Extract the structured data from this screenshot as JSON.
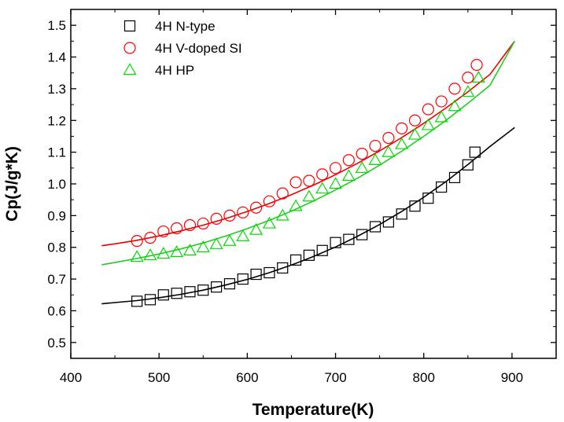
{
  "chart_data": {
    "type": "scatter",
    "title": "",
    "xlabel": "Temperature(K)",
    "ylabel": "Cp(J/g*K)",
    "xlim": [
      400,
      950
    ],
    "ylim": [
      0.45,
      1.55
    ],
    "xticks": [
      "400",
      "500",
      "600",
      "700",
      "800",
      "900"
    ],
    "yticks": [
      "0.5",
      "0.6",
      "0.7",
      "0.8",
      "0.9",
      "1.0",
      "1.1",
      "1.2",
      "1.3",
      "1.4",
      "1.5"
    ],
    "legend_position": "top-left",
    "grid": false,
    "series": [
      {
        "name": "4H N-type",
        "marker": "square",
        "color": "#000000",
        "x": [
          475,
          490,
          505,
          520,
          535,
          550,
          565,
          580,
          595,
          610,
          625,
          640,
          655,
          670,
          685,
          700,
          715,
          730,
          745,
          760,
          775,
          790,
          805,
          820,
          835,
          850,
          858
        ],
        "y": [
          0.63,
          0.635,
          0.65,
          0.655,
          0.66,
          0.665,
          0.675,
          0.685,
          0.7,
          0.715,
          0.72,
          0.735,
          0.76,
          0.775,
          0.79,
          0.815,
          0.825,
          0.84,
          0.865,
          0.88,
          0.905,
          0.93,
          0.955,
          0.99,
          1.02,
          1.06,
          1.1
        ],
        "fit_x": [
          435,
          450,
          475,
          500,
          525,
          550,
          575,
          600,
          625,
          650,
          675,
          700,
          725,
          750,
          775,
          800,
          825,
          850,
          875,
          903
        ],
        "fit_y": [
          0.622,
          0.626,
          0.632,
          0.641,
          0.652,
          0.665,
          0.681,
          0.699,
          0.72,
          0.744,
          0.771,
          0.801,
          0.835,
          0.872,
          0.913,
          0.958,
          1.007,
          1.061,
          1.118,
          1.178
        ]
      },
      {
        "name": "4H V-doped SI",
        "marker": "circle",
        "color": "#ff0000",
        "x": [
          475,
          490,
          505,
          520,
          535,
          550,
          565,
          580,
          595,
          610,
          625,
          640,
          655,
          670,
          685,
          700,
          715,
          730,
          745,
          760,
          775,
          790,
          805,
          820,
          835,
          850,
          860
        ],
        "y": [
          0.82,
          0.83,
          0.85,
          0.86,
          0.87,
          0.875,
          0.89,
          0.9,
          0.91,
          0.925,
          0.945,
          0.97,
          1.005,
          1.01,
          1.03,
          1.05,
          1.075,
          1.095,
          1.12,
          1.145,
          1.175,
          1.2,
          1.235,
          1.26,
          1.3,
          1.335,
          1.375
        ],
        "fit_x": [
          435,
          450,
          475,
          500,
          525,
          550,
          575,
          600,
          625,
          650,
          675,
          700,
          725,
          750,
          775,
          800,
          825,
          850,
          875,
          903
        ],
        "fit_y": [
          0.805,
          0.811,
          0.822,
          0.836,
          0.852,
          0.87,
          0.89,
          0.913,
          0.938,
          0.966,
          0.996,
          1.029,
          1.065,
          1.104,
          1.146,
          1.191,
          1.239,
          1.29,
          1.345,
          1.45
        ]
      },
      {
        "name": "4H HP",
        "marker": "triangle",
        "color": "#00dd00",
        "x": [
          475,
          490,
          505,
          520,
          535,
          550,
          565,
          580,
          595,
          610,
          625,
          640,
          655,
          670,
          685,
          700,
          715,
          730,
          745,
          760,
          775,
          790,
          805,
          820,
          835,
          850,
          862
        ],
        "y": [
          0.77,
          0.775,
          0.78,
          0.785,
          0.79,
          0.8,
          0.81,
          0.82,
          0.835,
          0.855,
          0.875,
          0.9,
          0.93,
          0.96,
          0.985,
          1.0,
          1.025,
          1.05,
          1.075,
          1.1,
          1.125,
          1.155,
          1.185,
          1.21,
          1.245,
          1.29,
          1.335
        ],
        "fit_x": [
          435,
          450,
          475,
          500,
          525,
          550,
          575,
          600,
          625,
          650,
          675,
          700,
          725,
          750,
          775,
          800,
          825,
          850,
          875,
          903
        ],
        "fit_y": [
          0.745,
          0.752,
          0.765,
          0.779,
          0.795,
          0.814,
          0.835,
          0.859,
          0.885,
          0.914,
          0.946,
          0.981,
          1.018,
          1.059,
          1.103,
          1.15,
          1.2,
          1.254,
          1.311,
          1.45
        ]
      }
    ]
  }
}
